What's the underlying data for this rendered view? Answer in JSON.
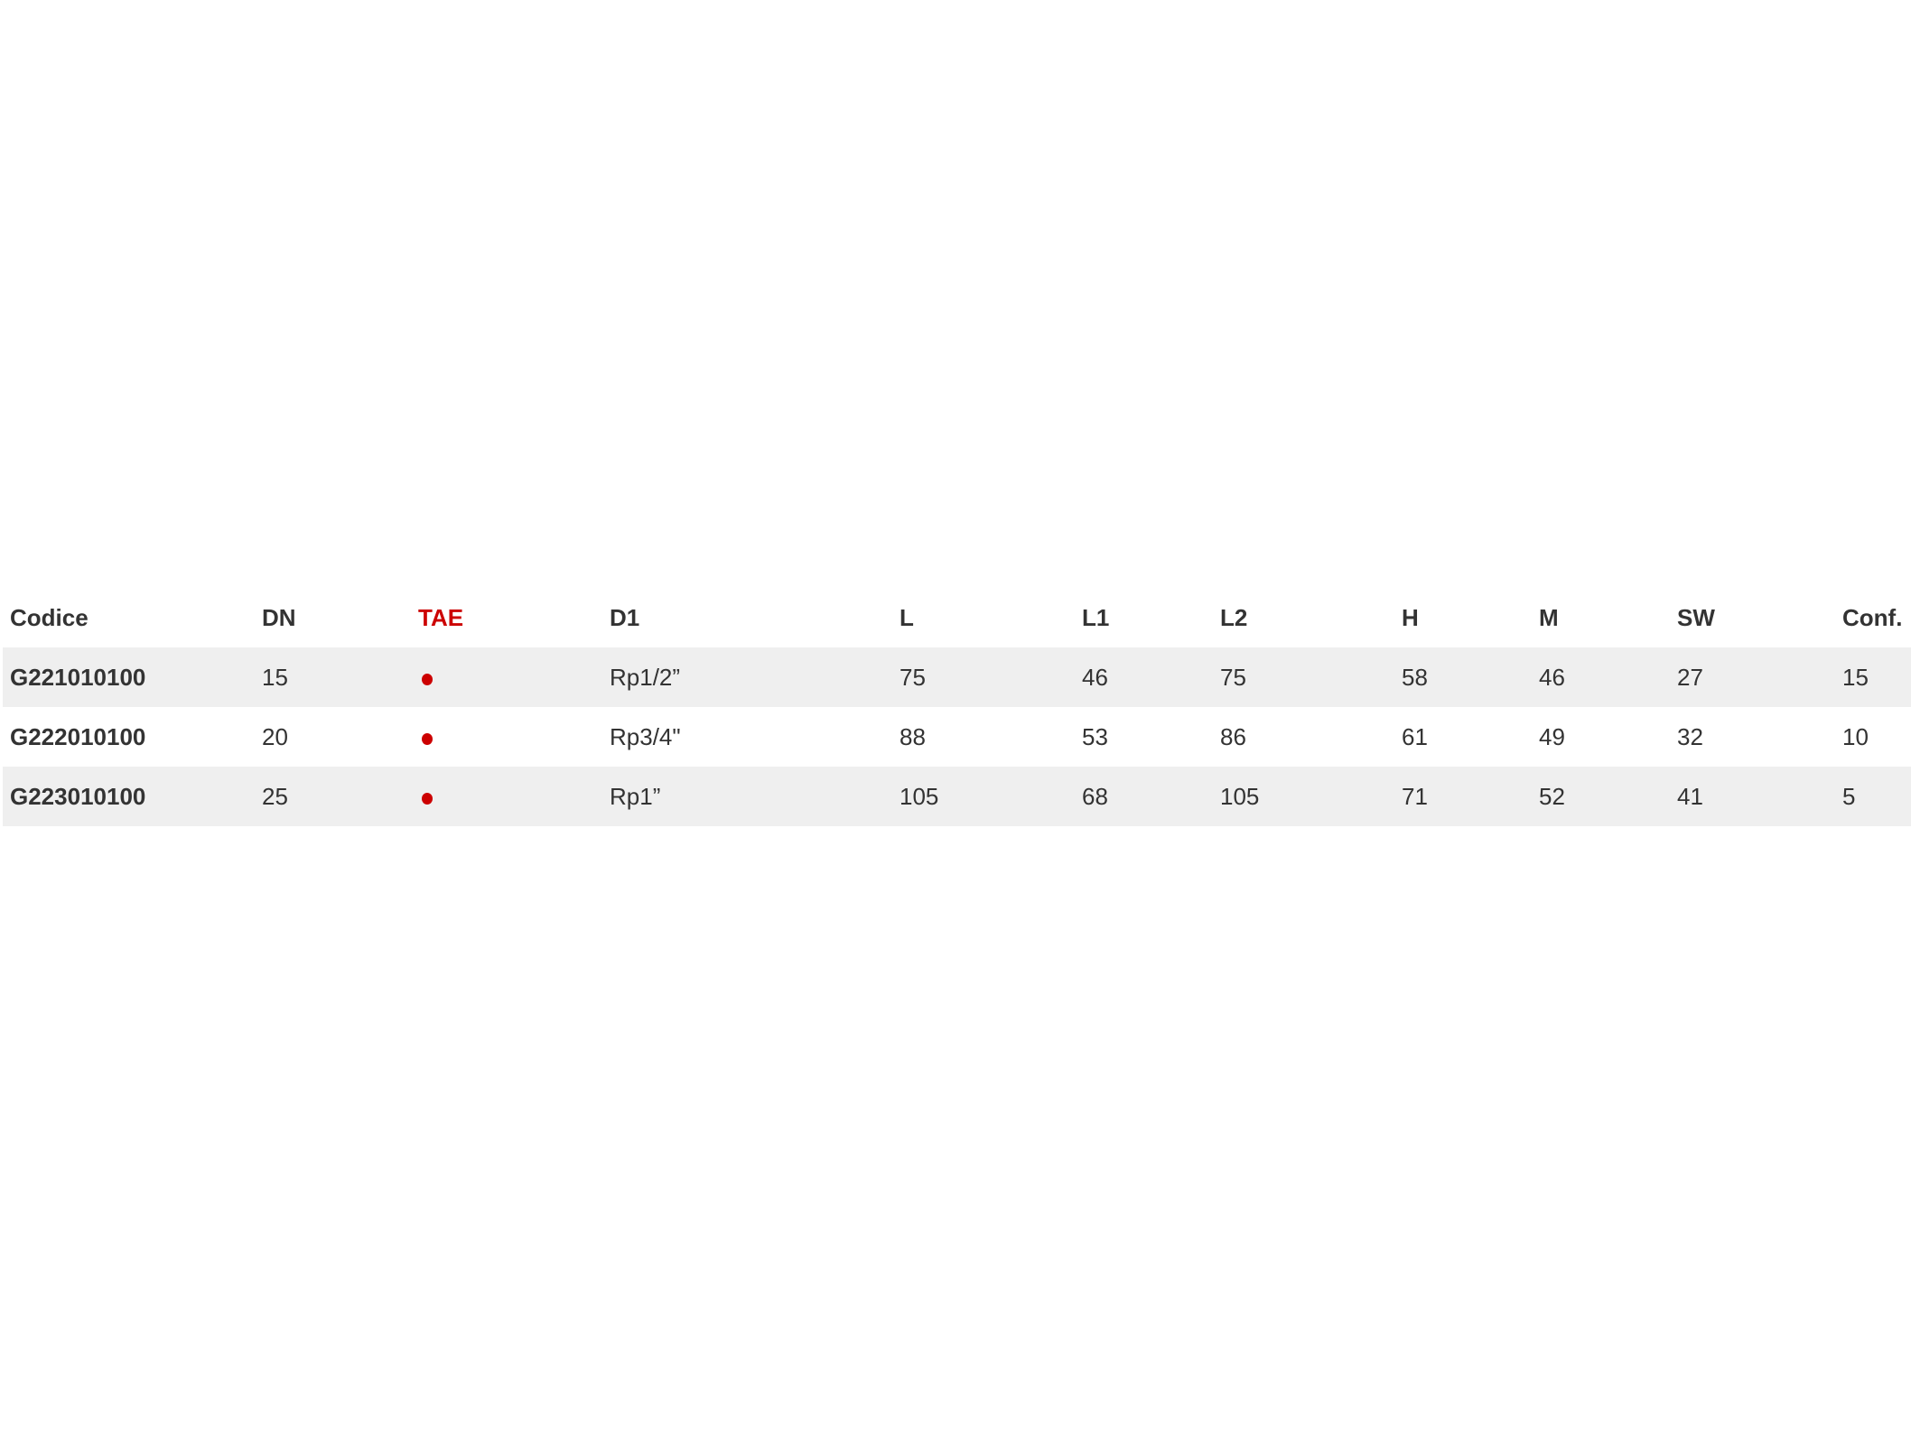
{
  "table": {
    "columns": [
      "Codice",
      "DN",
      "TAE",
      "D1",
      "L",
      "L1",
      "L2",
      "H",
      "M",
      "SW",
      "Conf."
    ],
    "accent_column": "TAE",
    "accent_color": "#cc0000",
    "rows": [
      {
        "codice": "G221010100",
        "dn": "15",
        "tae": "dot",
        "d1": "Rp1/2”",
        "l": "75",
        "l1": "46",
        "l2": "75",
        "h": "58",
        "m": "46",
        "sw": "27",
        "conf": "15"
      },
      {
        "codice": "G222010100",
        "dn": "20",
        "tae": "dot",
        "d1": "Rp3/4\"",
        "l": "88",
        "l1": "53",
        "l2": "86",
        "h": "61",
        "m": "49",
        "sw": "32",
        "conf": "10"
      },
      {
        "codice": "G223010100",
        "dn": "25",
        "tae": "dot",
        "d1": "Rp1”",
        "l": "105",
        "l1": "68",
        "l2": "105",
        "h": "71",
        "m": "52",
        "sw": "41",
        "conf": "5"
      }
    ]
  }
}
